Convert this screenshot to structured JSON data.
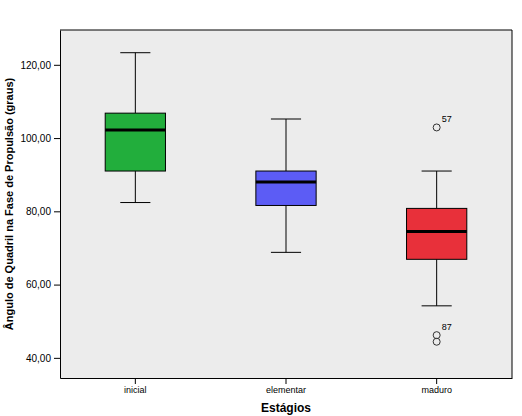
{
  "chart_data": {
    "type": "box",
    "x_label": "Estágios",
    "y_label": "Ângulo de Quadril na Fase de Propulsão (graus)",
    "categories": [
      "inicial",
      "elementar",
      "maduro"
    ],
    "colors": [
      "#22ae3c",
      "#5c5cf5",
      "#e8303a"
    ],
    "whisker_low": [
      82.4,
      68.8,
      54.2
    ],
    "q1": [
      91.0,
      81.6,
      66.9
    ],
    "median": [
      102.2,
      88.0,
      74.5
    ],
    "q3": [
      106.8,
      91.0,
      80.8
    ],
    "whisker_high": [
      123.3,
      105.2,
      91.0
    ],
    "outliers": [
      [],
      [],
      [
        {
          "value": 102.9,
          "label": "57"
        },
        {
          "value": 46.2,
          "label": "87"
        },
        {
          "value": 44.4
        }
      ]
    ],
    "ylim": [
      34.5,
      129.5
    ],
    "yticks": [
      {
        "value": 40,
        "label": "40,00"
      },
      {
        "value": 60,
        "label": "60,00"
      },
      {
        "value": 80,
        "label": "80,00"
      },
      {
        "value": 100,
        "label": "100,00"
      },
      {
        "value": 120,
        "label": "120,00"
      }
    ]
  }
}
